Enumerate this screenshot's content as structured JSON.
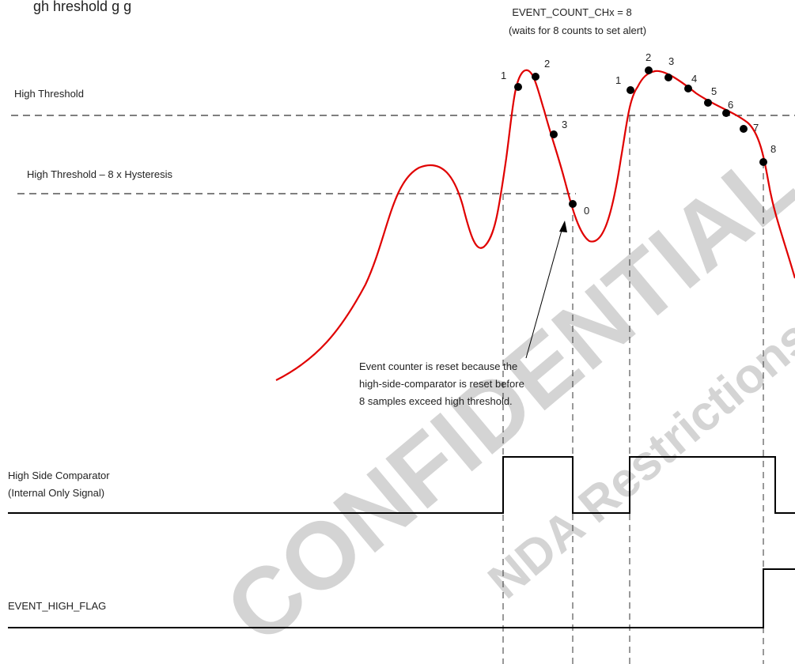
{
  "title_fragment": "gh    hreshold  g   g",
  "watermarks": {
    "large": "CONFIDENTIAL - ONLY",
    "small": "NDA Restrictions"
  },
  "event_count": {
    "line1": "EVENT_COUNT_CHx  = 8",
    "line2": "(waits for 8 counts to set alert)"
  },
  "thresholds": {
    "high": "High Threshold",
    "hysteresis": "High Threshold – 8 x Hysteresis"
  },
  "annotation": {
    "line1": "Event counter is reset because the",
    "line2": "high-side-comparator is reset before",
    "line3": "8 samples exceed high threshold."
  },
  "comparator": {
    "line1": "High Side Comparator",
    "line2": "(Internal Only Signal)"
  },
  "flag": "EVENT_HIGH_FLAG",
  "sample_labels": [
    "1",
    "2",
    "3",
    "0",
    "1",
    "2",
    "3",
    "4",
    "5",
    "6",
    "7",
    "8"
  ],
  "colors": {
    "signal": "#e00000",
    "line": "#000000",
    "dash": "#333333",
    "watermark": "#d4d4d4"
  }
}
